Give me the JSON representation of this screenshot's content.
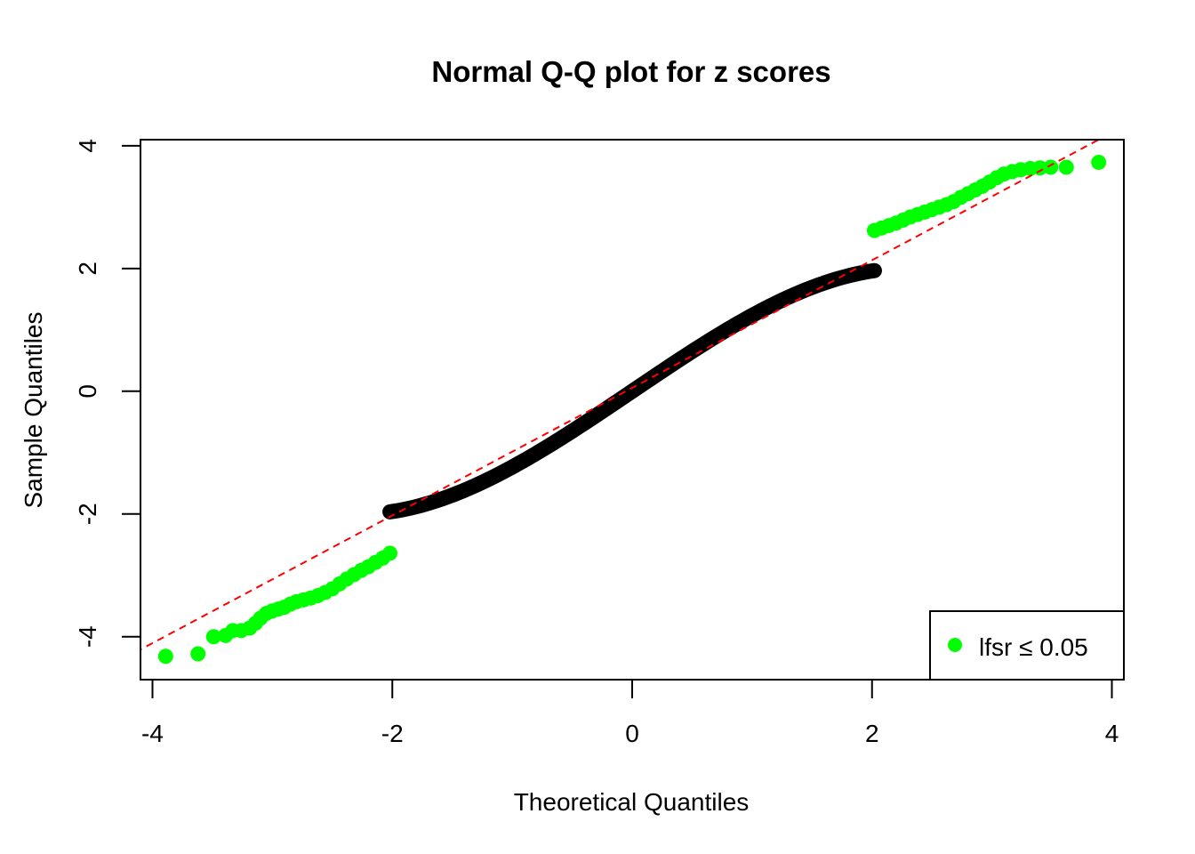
{
  "chart_data": {
    "type": "scatter",
    "title": "Normal Q-Q plot for z scores",
    "xlabel": "Theoretical Quantiles",
    "ylabel": "Sample Quantiles",
    "xlim": [
      -4.1,
      4.1
    ],
    "ylim": [
      -4.7,
      4.1
    ],
    "x_ticks": [
      -4,
      -2,
      0,
      2,
      4
    ],
    "y_ticks": [
      -4,
      -2,
      0,
      2,
      4
    ],
    "x_tick_labels": [
      "-4",
      "-2",
      "0",
      "2",
      "4"
    ],
    "y_tick_labels": [
      "-4",
      "-2",
      "0",
      "2",
      "4"
    ],
    "grid": false,
    "colors": {
      "significant": "#00ff00",
      "other": "#000000",
      "reference_line": "#ff0000"
    },
    "series": [
      {
        "name": "lfsr ≤ 0.05",
        "color": "#00ff00",
        "points": [
          [
            -3.89,
            -4.32
          ],
          [
            -3.62,
            -4.28
          ],
          [
            -3.49,
            -4.0
          ],
          [
            -3.39,
            -3.98
          ],
          [
            -3.33,
            -3.9
          ],
          [
            -3.26,
            -3.9
          ],
          [
            -3.19,
            -3.86
          ],
          [
            -3.14,
            -3.78
          ],
          [
            -3.1,
            -3.7
          ],
          [
            -3.05,
            -3.62
          ],
          [
            -3.0,
            -3.58
          ],
          [
            -2.95,
            -3.55
          ],
          [
            -2.9,
            -3.52
          ],
          [
            -2.85,
            -3.47
          ],
          [
            -2.8,
            -3.43
          ],
          [
            -2.74,
            -3.4
          ],
          [
            -2.68,
            -3.37
          ],
          [
            -2.62,
            -3.33
          ],
          [
            -2.56,
            -3.28
          ],
          [
            -2.5,
            -3.22
          ],
          [
            -2.44,
            -3.14
          ],
          [
            -2.38,
            -3.06
          ],
          [
            -2.32,
            -2.99
          ],
          [
            -2.26,
            -2.92
          ],
          [
            -2.2,
            -2.86
          ],
          [
            -2.14,
            -2.79
          ],
          [
            -2.08,
            -2.72
          ],
          [
            -2.02,
            -2.64
          ],
          [
            2.02,
            2.62
          ],
          [
            2.08,
            2.66
          ],
          [
            2.14,
            2.7
          ],
          [
            2.2,
            2.74
          ],
          [
            2.26,
            2.79
          ],
          [
            2.32,
            2.84
          ],
          [
            2.38,
            2.88
          ],
          [
            2.44,
            2.92
          ],
          [
            2.5,
            2.96
          ],
          [
            2.56,
            3.0
          ],
          [
            2.62,
            3.04
          ],
          [
            2.68,
            3.09
          ],
          [
            2.74,
            3.16
          ],
          [
            2.8,
            3.22
          ],
          [
            2.86,
            3.28
          ],
          [
            2.92,
            3.34
          ],
          [
            2.98,
            3.41
          ],
          [
            3.04,
            3.48
          ],
          [
            3.1,
            3.54
          ],
          [
            3.17,
            3.58
          ],
          [
            3.24,
            3.61
          ],
          [
            3.32,
            3.63
          ],
          [
            3.4,
            3.64
          ],
          [
            3.49,
            3.65
          ],
          [
            3.62,
            3.65
          ],
          [
            3.89,
            3.73
          ]
        ]
      }
    ],
    "reference_line": {
      "intercept": 0.055,
      "slope": 1.04
    },
    "legend": {
      "position": "bottom-right",
      "entries": [
        {
          "label": "lfsr  ≤ 0.05",
          "color": "#00ff00"
        }
      ]
    }
  }
}
